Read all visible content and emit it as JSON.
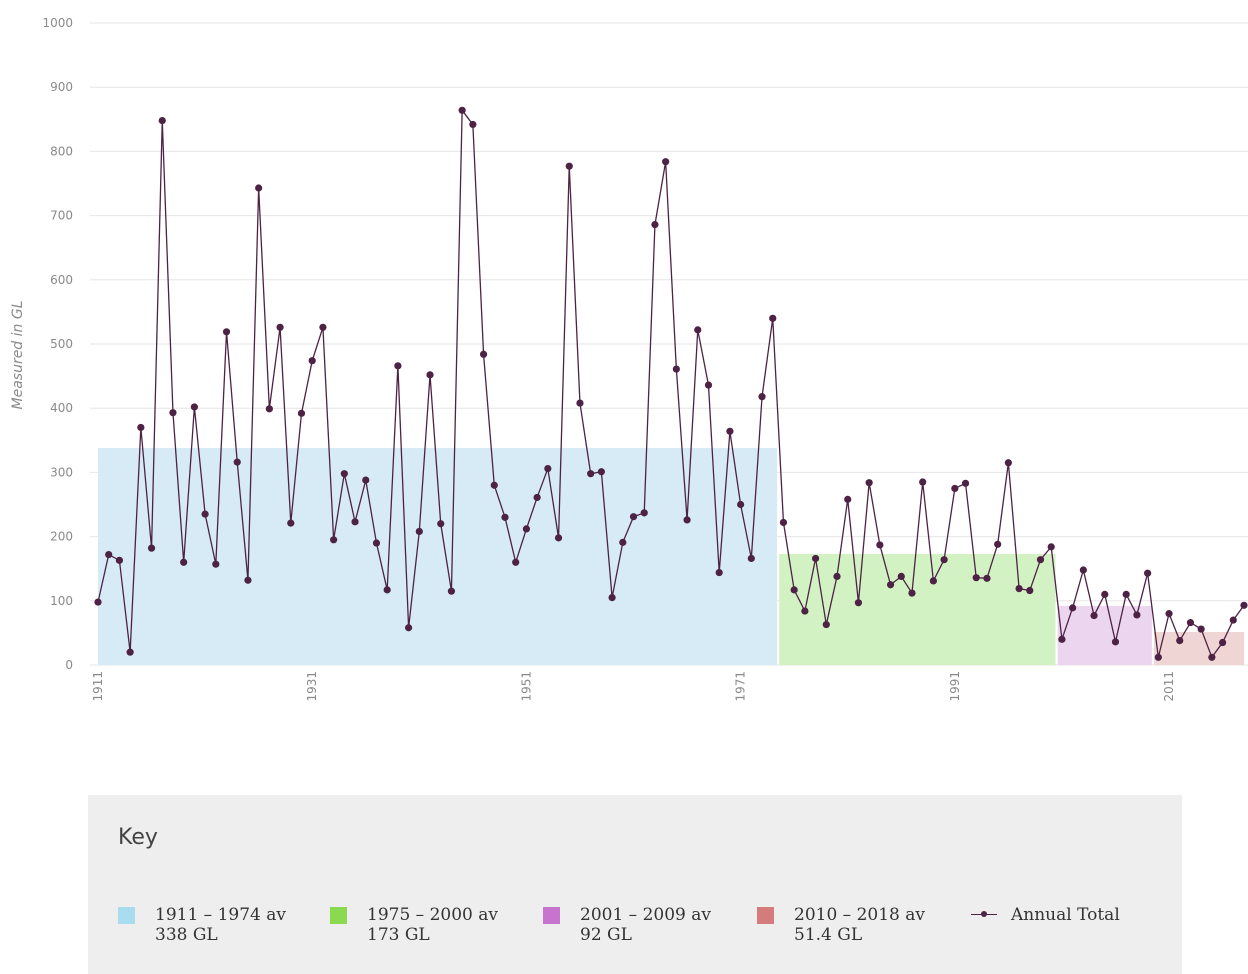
{
  "chart_data": {
    "type": "line",
    "title": "",
    "xlabel": "",
    "ylabel": "Measured in GL",
    "ylim": [
      0,
      1000
    ],
    "yticks": [
      0,
      100,
      200,
      300,
      400,
      500,
      600,
      700,
      800,
      900,
      1000
    ],
    "xticks": [
      1911,
      1931,
      1951,
      1971,
      1991,
      2011
    ],
    "xlim": [
      1911,
      2018
    ],
    "grid": true,
    "series": [
      {
        "name": "Annual Total",
        "color": "#4d2245",
        "x": [
          1911,
          1912,
          1913,
          1914,
          1915,
          1916,
          1917,
          1918,
          1919,
          1920,
          1921,
          1922,
          1923,
          1924,
          1925,
          1926,
          1927,
          1928,
          1929,
          1930,
          1931,
          1932,
          1933,
          1934,
          1935,
          1936,
          1937,
          1938,
          1939,
          1940,
          1941,
          1942,
          1943,
          1944,
          1945,
          1946,
          1947,
          1948,
          1949,
          1950,
          1951,
          1952,
          1953,
          1954,
          1955,
          1956,
          1957,
          1958,
          1959,
          1960,
          1961,
          1962,
          1963,
          1964,
          1965,
          1966,
          1967,
          1968,
          1969,
          1970,
          1971,
          1972,
          1973,
          1974,
          1975,
          1976,
          1977,
          1978,
          1979,
          1980,
          1981,
          1982,
          1983,
          1984,
          1985,
          1986,
          1987,
          1988,
          1989,
          1990,
          1991,
          1992,
          1993,
          1994,
          1995,
          1996,
          1997,
          1998,
          1999,
          2000,
          2001,
          2002,
          2003,
          2004,
          2005,
          2006,
          2007,
          2008,
          2009,
          2010,
          2011,
          2012,
          2013,
          2014,
          2015,
          2016,
          2017,
          2018
        ],
        "values": [
          98,
          172,
          163,
          20,
          370,
          182,
          848,
          393,
          160,
          402,
          235,
          157,
          519,
          316,
          132,
          743,
          399,
          526,
          221,
          392,
          474,
          526,
          195,
          298,
          223,
          288,
          190,
          117,
          466,
          58,
          208,
          452,
          220,
          115,
          864,
          842,
          484,
          280,
          230,
          160,
          212,
          261,
          306,
          198,
          777,
          408,
          298,
          301,
          105,
          191,
          231,
          237,
          686,
          784,
          461,
          226,
          522,
          436,
          144,
          364,
          250,
          166,
          418,
          540,
          222,
          117,
          84,
          166,
          63,
          138,
          258,
          97,
          284,
          187,
          125,
          138,
          112,
          285,
          131,
          164,
          275,
          283,
          136,
          135,
          188,
          315,
          119,
          116,
          164,
          184,
          40,
          89,
          148,
          77,
          110,
          36,
          110,
          78,
          143,
          12,
          80,
          38,
          66,
          56,
          12,
          35,
          70,
          93
        ]
      }
    ],
    "period_averages": [
      {
        "from": 1911,
        "to": 1974,
        "value": 338,
        "color": "#d6ebf6"
      },
      {
        "from": 1975,
        "to": 2000,
        "value": 173,
        "color": "#d2f2c4"
      },
      {
        "from": 2001,
        "to": 2009,
        "value": 92,
        "color": "#ebd5ef"
      },
      {
        "from": 2010,
        "to": 2018,
        "value": 51.4,
        "color": "#efd5d3"
      }
    ]
  },
  "key": {
    "title": "Key",
    "items": [
      {
        "line1": "1911 – 1974 av",
        "line2": "338 GL",
        "color": "#a9dcef"
      },
      {
        "line1": "1975 – 2000 av",
        "line2": "173 GL",
        "color": "#8bd94e"
      },
      {
        "line1": "2001 – 2009 av",
        "line2": "92 GL",
        "color": "#c874cf"
      },
      {
        "line1": "2010 – 2018 av",
        "line2": "51.4 GL",
        "color": "#d47b7b"
      }
    ],
    "series_label": "Annual Total"
  }
}
